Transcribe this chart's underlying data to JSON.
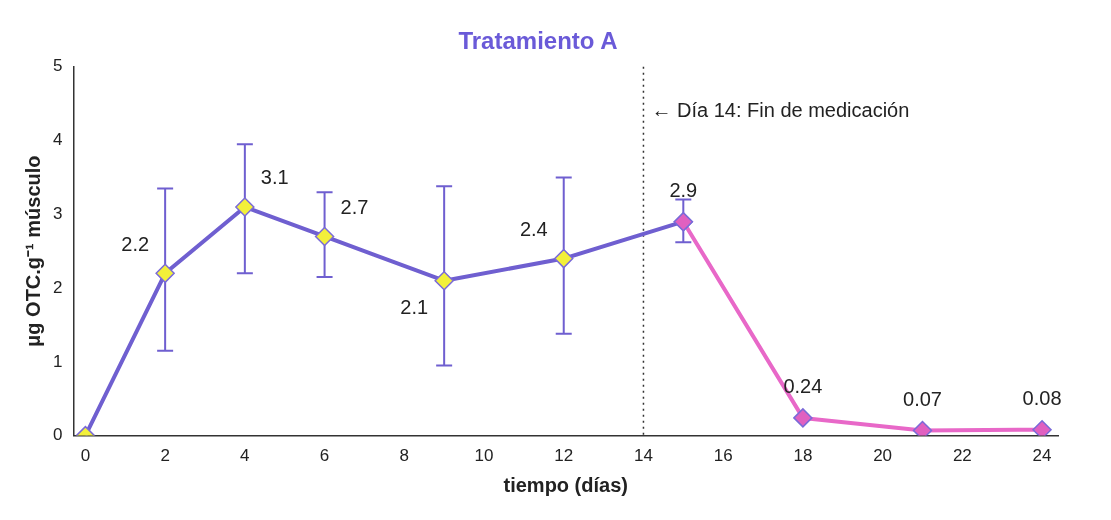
{
  "chart_data": {
    "type": "line",
    "title": "Tratamiento A",
    "xlabel": "tiempo (días)",
    "ylabel": "μg OTC.g⁻¹ músculo",
    "xlim": [
      -0.3,
      24.4
    ],
    "xticks": [
      0,
      2,
      4,
      6,
      8,
      10,
      12,
      14,
      16,
      18,
      20,
      22,
      24
    ],
    "ylim": [
      0,
      5
    ],
    "yticks": [
      0,
      1,
      2,
      3,
      4,
      5
    ],
    "grid": false,
    "legend": false,
    "marker": "diamond",
    "line_style": "solid",
    "series": [
      {
        "color": "#6f5fd0",
        "x": [
          0,
          2,
          4,
          6,
          9,
          12,
          15
        ],
        "values": [
          0,
          2.2,
          3.1,
          2.7,
          2.1,
          2.4,
          2.9
        ],
        "colors": [
          "#f2f03a",
          "#f2f03a",
          "#f2f03a",
          "#f2f03a",
          "#f2f03a",
          "#f2f03a",
          "#e060c0"
        ],
        "errors": [
          null,
          [
            1.15,
            3.35
          ],
          [
            2.2,
            3.95
          ],
          [
            2.15,
            3.3
          ],
          [
            0.95,
            3.38
          ],
          [
            1.38,
            3.5
          ],
          [
            2.62,
            3.2
          ]
        ],
        "value_labels": [
          null,
          "2.2",
          "3.1",
          "2.7",
          "2.1",
          "2.4",
          null
        ]
      },
      {
        "color": "#e868c8",
        "x": [
          15,
          18,
          21,
          24
        ],
        "values": [
          2.9,
          0.24,
          0.07,
          0.08
        ],
        "colors": [
          "#e060c0",
          "#e060c0",
          "#e060c0",
          "#e060c0"
        ],
        "value_labels": [
          "2.9",
          "0.24",
          "0.07",
          "0.08"
        ]
      }
    ],
    "ref_lines": [
      {
        "axis": "x",
        "value": 14,
        "label": "← Día 14: Fin de medicación",
        "line_style": "dotted",
        "color": "#333333"
      }
    ]
  }
}
